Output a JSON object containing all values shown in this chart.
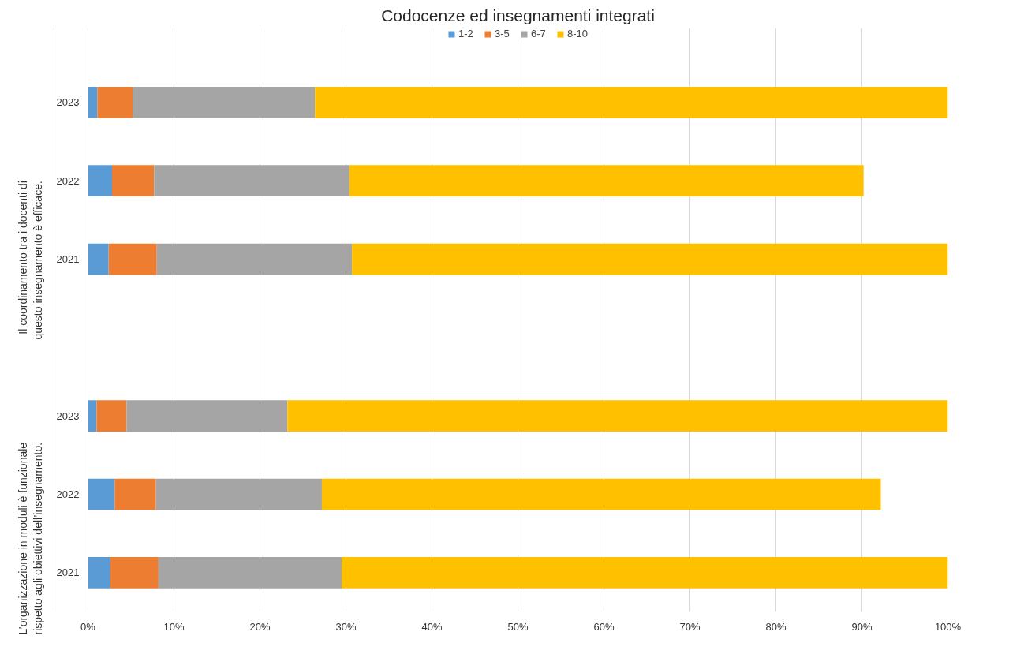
{
  "chart_data": {
    "type": "bar",
    "orientation": "horizontal",
    "stacked": true,
    "title": "Codocenze ed insegnamenti integrati",
    "categories": [
      "2023",
      "2022",
      "2021",
      null,
      "2023",
      "2022",
      "2021"
    ],
    "series": [
      {
        "name": "1-2",
        "color": "#5b9bd5",
        "values": [
          1.1,
          2.8,
          2.4,
          null,
          1.0,
          3.1,
          2.6
        ]
      },
      {
        "name": "3-5",
        "color": "#ed7d31",
        "values": [
          4.1,
          4.9,
          5.6,
          null,
          3.5,
          4.8,
          5.6
        ]
      },
      {
        "name": "6-7",
        "color": "#a5a5a5",
        "values": [
          21.2,
          22.7,
          22.7,
          null,
          18.7,
          19.3,
          21.3
        ]
      },
      {
        "name": "8-10",
        "color": "#ffc000",
        "values": [
          73.6,
          59.8,
          69.3,
          null,
          76.8,
          65.0,
          70.5
        ]
      }
    ],
    "annotations": [
      "Il coordinamento tra i docenti di questo insegnamento è efficace.",
      "L’organizzazione in moduli è funzionale rispetto agli obiettivi dell’insegnamento."
    ],
    "xlim": [
      0,
      100
    ],
    "xticks": [
      {
        "value": 0,
        "label": "0%"
      },
      {
        "value": 10,
        "label": "10%"
      },
      {
        "value": 20,
        "label": "20%"
      },
      {
        "value": 30,
        "label": "30%"
      },
      {
        "value": 40,
        "label": "40%"
      },
      {
        "value": 50,
        "label": "50%"
      },
      {
        "value": 60,
        "label": "60%"
      },
      {
        "value": 70,
        "label": "70%"
      },
      {
        "value": 80,
        "label": "80%"
      },
      {
        "value": 90,
        "label": "90%"
      },
      {
        "value": 100,
        "label": "100%"
      }
    ],
    "grid": "x",
    "legend": "top"
  }
}
